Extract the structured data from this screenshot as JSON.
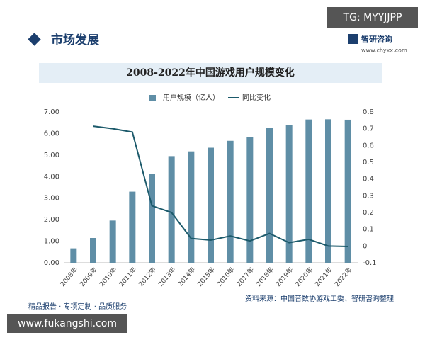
{
  "header": {
    "section": "市场发展",
    "tag": "TG: MYYJJPP",
    "brand": "智研咨询",
    "url": "www.chyxx.com"
  },
  "chart_data": {
    "type": "bar_line",
    "title": "2008-2022年中国游戏用户规模变化",
    "categories": [
      "2008年",
      "2009年",
      "2010年",
      "2011年",
      "2012年",
      "2013年",
      "2014年",
      "2015年",
      "2016年",
      "2017年",
      "2018年",
      "2019年",
      "2020年",
      "2021年",
      "2022年"
    ],
    "series": [
      {
        "name": "用户规模（亿人）",
        "type": "bar",
        "color": "#5f8ea6",
        "values": [
          0.67,
          1.15,
          1.96,
          3.3,
          4.12,
          4.95,
          5.17,
          5.34,
          5.66,
          5.83,
          6.26,
          6.4,
          6.65,
          6.66,
          6.64
        ]
      },
      {
        "name": "同比变化",
        "type": "line",
        "axis": "y2",
        "color": "#1c5a6b",
        "values": [
          null,
          0.715,
          0.7,
          0.68,
          0.24,
          0.2,
          0.045,
          0.035,
          0.06,
          0.03,
          0.075,
          0.02,
          0.04,
          0.0,
          -0.003
        ]
      }
    ],
    "ylim": [
      0,
      7
    ],
    "yticks": [
      {
        "value": 0,
        "label": "0.00"
      },
      {
        "value": 1,
        "label": "1.00"
      },
      {
        "value": 2,
        "label": "2.00"
      },
      {
        "value": 3,
        "label": "3.00"
      },
      {
        "value": 4,
        "label": "4.00"
      },
      {
        "value": 5,
        "label": "5.00"
      },
      {
        "value": 6,
        "label": "6.00"
      },
      {
        "value": 7,
        "label": "7.00"
      }
    ],
    "y2lim": [
      -0.1,
      0.8
    ],
    "y2ticks": [
      -0.1,
      0,
      0.1,
      0.2,
      0.3,
      0.4,
      0.5,
      0.6,
      0.7,
      0.8
    ],
    "source": "资料来源：中国音数协游戏工委、智研咨询整理"
  },
  "footer": {
    "slogan": "精品报告 · 专项定制 · 品质服务",
    "site": "www.fukangshi.com"
  }
}
